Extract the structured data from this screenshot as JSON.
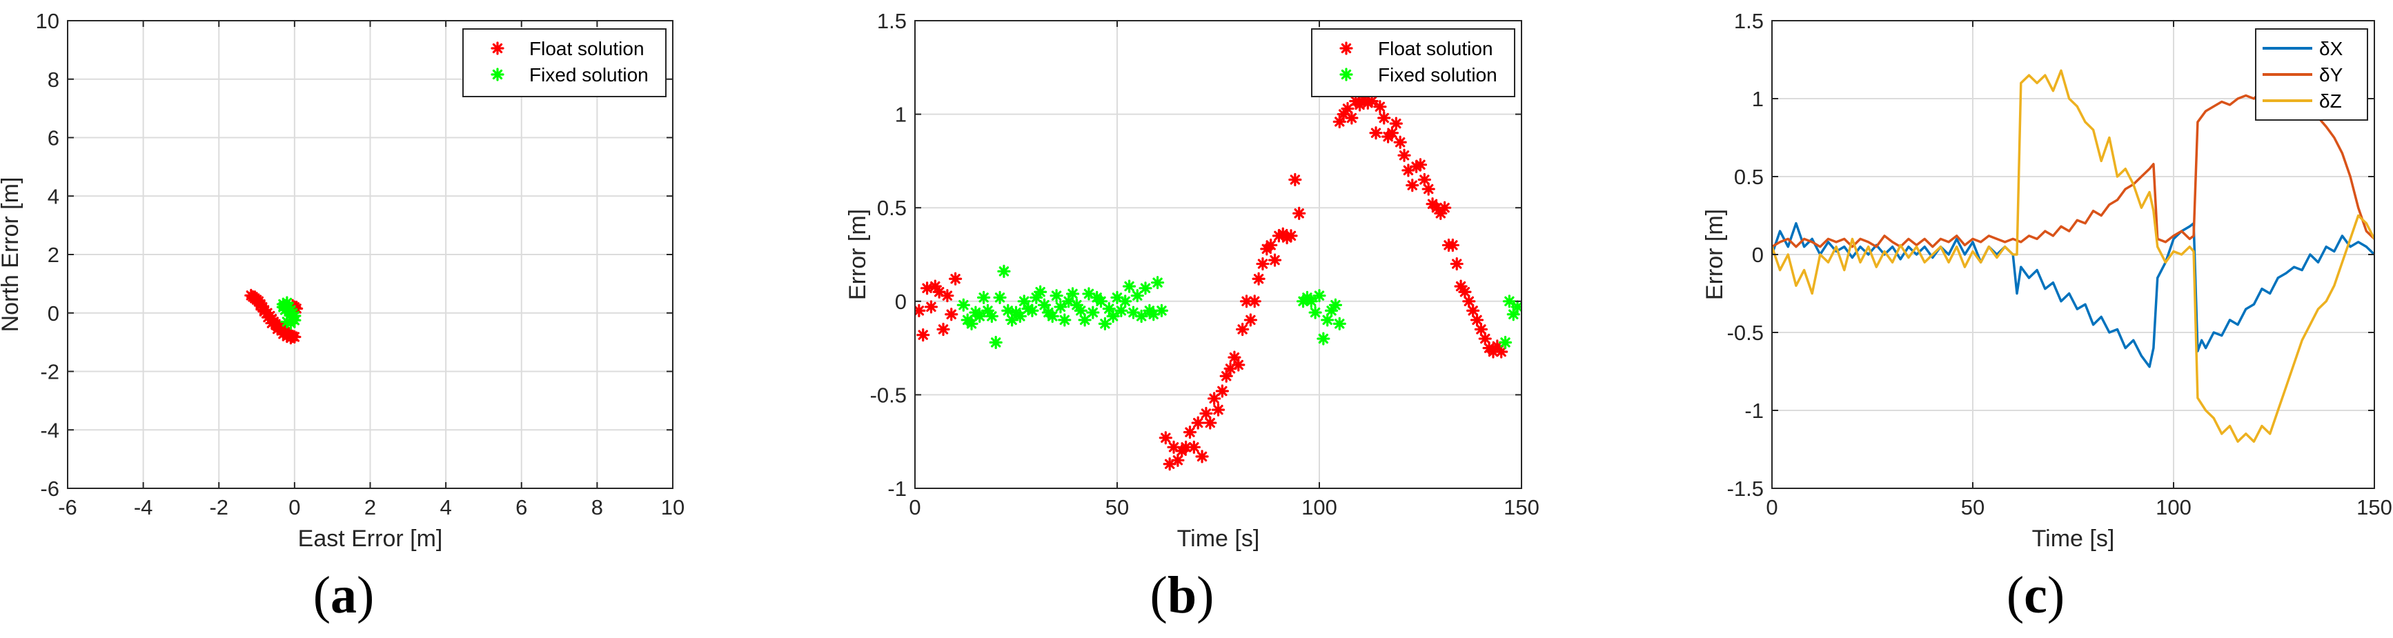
{
  "chart_data": [
    {
      "type": "scatter",
      "panel_label": "a",
      "xlabel": "East Error [m]",
      "ylabel": "North Error [m]",
      "xlim": [
        -6,
        10
      ],
      "ylim": [
        -6,
        10
      ],
      "xticks": [
        -6,
        -4,
        -2,
        0,
        2,
        4,
        6,
        8,
        10
      ],
      "yticks": [
        -6,
        -4,
        -2,
        0,
        2,
        4,
        6,
        8,
        10
      ],
      "grid": true,
      "legend_position": "top-right",
      "series": [
        {
          "name": "Float solution",
          "color": "#ff0000",
          "marker": "asterisk",
          "x": [
            -1.15,
            -1.05,
            -0.95,
            -0.9,
            -0.85,
            -0.8,
            -0.72,
            -0.65,
            -0.6,
            -0.55,
            -0.5,
            -0.45,
            -0.4,
            -0.35,
            -0.3,
            -0.25,
            -0.2,
            -0.15,
            -0.1,
            -0.05,
            0.0,
            -0.1,
            -0.2,
            -0.3,
            -0.45,
            -0.6,
            -0.7,
            -0.8,
            -0.9,
            -1.0,
            -1.1,
            -0.05,
            0.05,
            0.0
          ],
          "y": [
            0.6,
            0.5,
            0.4,
            0.3,
            0.2,
            0.1,
            0.0,
            -0.1,
            -0.2,
            -0.3,
            -0.38,
            -0.45,
            -0.5,
            -0.55,
            -0.6,
            -0.65,
            -0.7,
            -0.75,
            -0.78,
            -0.8,
            -0.82,
            -0.85,
            -0.8,
            -0.72,
            -0.55,
            -0.35,
            -0.15,
            0.05,
            0.25,
            0.45,
            0.55,
            0.25,
            0.15,
            0.2
          ]
        },
        {
          "name": "Fixed solution",
          "color": "#00ff00",
          "marker": "asterisk",
          "x": [
            -0.3,
            -0.25,
            -0.2,
            -0.15,
            -0.1,
            -0.05,
            0.0,
            -0.2,
            -0.15,
            -0.1,
            -0.05,
            0.0,
            -0.25,
            -0.3,
            -0.2,
            -0.1
          ],
          "y": [
            0.3,
            0.25,
            0.15,
            0.05,
            -0.05,
            -0.15,
            -0.25,
            0.35,
            0.2,
            0.1,
            0.0,
            -0.1,
            0.1,
            0.2,
            -0.3,
            -0.35
          ]
        }
      ]
    },
    {
      "type": "scatter",
      "panel_label": "b",
      "xlabel": "Time [s]",
      "ylabel": "Error [m]",
      "xlim": [
        0,
        150
      ],
      "ylim": [
        -1,
        1.5
      ],
      "xticks": [
        0,
        50,
        100,
        150
      ],
      "yticks": [
        -1,
        -0.5,
        0,
        0.5,
        1,
        1.5
      ],
      "grid": true,
      "legend_position": "top-right",
      "series": [
        {
          "name": "Float solution",
          "color": "#ff0000",
          "marker": "asterisk",
          "x": [
            1,
            2,
            3,
            4,
            5,
            6,
            7,
            8,
            9,
            10,
            62,
            63,
            64,
            65,
            66,
            67,
            68,
            69,
            70,
            71,
            72,
            73,
            74,
            75,
            76,
            77,
            78,
            79,
            80,
            81,
            82,
            83,
            84,
            85,
            86,
            87,
            88,
            89,
            90,
            91,
            92,
            93,
            94,
            95,
            105,
            106,
            107,
            108,
            109,
            110,
            111,
            112,
            113,
            114,
            115,
            116,
            117,
            118,
            119,
            120,
            121,
            122,
            123,
            124,
            125,
            126,
            127,
            128,
            129,
            130,
            131,
            132,
            133,
            134,
            135,
            136,
            137,
            138,
            139,
            140,
            141,
            142,
            143,
            144,
            145
          ],
          "y": [
            -0.05,
            -0.18,
            0.07,
            -0.03,
            0.08,
            0.05,
            -0.15,
            0.03,
            -0.07,
            0.12,
            -0.73,
            -0.87,
            -0.78,
            -0.85,
            -0.8,
            -0.78,
            -0.7,
            -0.78,
            -0.65,
            -0.83,
            -0.6,
            -0.65,
            -0.52,
            -0.58,
            -0.48,
            -0.4,
            -0.36,
            -0.3,
            -0.34,
            -0.15,
            0.0,
            -0.1,
            0.0,
            0.12,
            0.2,
            0.28,
            0.3,
            0.22,
            0.35,
            0.36,
            0.34,
            0.35,
            0.65,
            0.47,
            0.96,
            1.0,
            1.03,
            0.98,
            1.07,
            1.05,
            1.08,
            1.06,
            1.07,
            0.9,
            1.04,
            0.98,
            0.88,
            0.9,
            0.95,
            0.85,
            0.78,
            0.7,
            0.62,
            0.72,
            0.73,
            0.65,
            0.6,
            0.52,
            0.5,
            0.47,
            0.5,
            0.3,
            0.3,
            0.2,
            0.08,
            0.05,
            0.0,
            -0.05,
            -0.1,
            -0.15,
            -0.2,
            -0.25,
            -0.27,
            -0.24,
            -0.27
          ]
        },
        {
          "name": "Fixed solution",
          "color": "#00ff00",
          "marker": "asterisk",
          "x": [
            12,
            13,
            14,
            15,
            16,
            17,
            18,
            19,
            20,
            21,
            22,
            23,
            24,
            25,
            26,
            27,
            28,
            29,
            30,
            31,
            32,
            33,
            34,
            35,
            36,
            37,
            38,
            39,
            40,
            41,
            42,
            43,
            44,
            45,
            46,
            47,
            48,
            49,
            50,
            51,
            52,
            53,
            54,
            55,
            56,
            57,
            58,
            59,
            60,
            61,
            96,
            97,
            98,
            99,
            100,
            101,
            102,
            103,
            104,
            105,
            146,
            147,
            148,
            149
          ],
          "y": [
            -0.02,
            -0.1,
            -0.12,
            -0.06,
            -0.08,
            0.02,
            -0.05,
            -0.08,
            -0.22,
            0.02,
            0.16,
            -0.05,
            -0.1,
            -0.06,
            -0.08,
            0.0,
            -0.04,
            -0.05,
            0.02,
            0.05,
            -0.02,
            -0.06,
            -0.08,
            0.03,
            -0.03,
            -0.1,
            0.0,
            0.04,
            -0.02,
            -0.05,
            -0.1,
            0.04,
            -0.06,
            0.02,
            0.0,
            -0.12,
            -0.04,
            -0.08,
            0.02,
            -0.05,
            0.0,
            0.08,
            -0.06,
            0.03,
            -0.08,
            0.07,
            -0.05,
            -0.07,
            0.1,
            -0.05,
            0.0,
            0.02,
            0.0,
            -0.06,
            0.03,
            -0.2,
            -0.1,
            -0.05,
            -0.02,
            -0.12,
            -0.22,
            0.0,
            -0.07,
            -0.03
          ]
        }
      ]
    },
    {
      "type": "line",
      "panel_label": "c",
      "xlabel": "Time [s]",
      "ylabel": "Error [m]",
      "xlim": [
        0,
        150
      ],
      "ylim": [
        -1.5,
        1.5
      ],
      "xticks": [
        0,
        50,
        100,
        150
      ],
      "yticks": [
        -1.5,
        -1,
        -0.5,
        0,
        0.5,
        1,
        1.5
      ],
      "grid": true,
      "legend_position": "top-right",
      "series": [
        {
          "name": "δX",
          "color": "#0072bd",
          "x": [
            0,
            2,
            4,
            6,
            8,
            10,
            12,
            14,
            16,
            18,
            20,
            22,
            24,
            26,
            28,
            30,
            32,
            34,
            36,
            38,
            40,
            42,
            44,
            46,
            48,
            50,
            52,
            54,
            56,
            58,
            60,
            61,
            62,
            64,
            66,
            68,
            70,
            72,
            74,
            76,
            78,
            80,
            82,
            84,
            86,
            88,
            90,
            92,
            94,
            95,
            96,
            98,
            100,
            102,
            104,
            105,
            106,
            107,
            108,
            110,
            112,
            114,
            116,
            118,
            120,
            122,
            124,
            126,
            128,
            130,
            132,
            134,
            136,
            138,
            140,
            142,
            144,
            146,
            148,
            150
          ],
          "y": [
            0.0,
            0.15,
            0.05,
            0.2,
            0.05,
            0.1,
            0.0,
            0.08,
            0.02,
            0.05,
            -0.02,
            0.05,
            0.0,
            0.06,
            0.0,
            0.05,
            -0.03,
            0.05,
            0.0,
            0.05,
            -0.02,
            0.05,
            0.0,
            0.1,
            0.0,
            0.08,
            -0.05,
            0.05,
            0.0,
            0.05,
            0.0,
            -0.25,
            -0.08,
            -0.15,
            -0.1,
            -0.22,
            -0.18,
            -0.3,
            -0.25,
            -0.35,
            -0.32,
            -0.45,
            -0.4,
            -0.5,
            -0.48,
            -0.6,
            -0.55,
            -0.65,
            -0.72,
            -0.6,
            -0.15,
            -0.05,
            0.1,
            0.15,
            0.18,
            0.2,
            -0.62,
            -0.55,
            -0.6,
            -0.5,
            -0.52,
            -0.42,
            -0.45,
            -0.35,
            -0.32,
            -0.22,
            -0.25,
            -0.15,
            -0.12,
            -0.08,
            -0.1,
            0.0,
            -0.05,
            0.05,
            0.02,
            0.12,
            0.05,
            0.08,
            0.05,
            0.0
          ]
        },
        {
          "name": "δY",
          "color": "#d95319",
          "x": [
            0,
            2,
            4,
            6,
            8,
            10,
            12,
            14,
            16,
            18,
            20,
            22,
            24,
            26,
            28,
            30,
            32,
            34,
            36,
            38,
            40,
            42,
            44,
            46,
            48,
            50,
            52,
            54,
            56,
            58,
            60,
            62,
            64,
            66,
            68,
            70,
            72,
            74,
            76,
            78,
            80,
            82,
            84,
            86,
            88,
            90,
            92,
            94,
            95,
            96,
            98,
            100,
            102,
            104,
            105,
            106,
            108,
            110,
            112,
            114,
            116,
            118,
            120,
            122,
            124,
            126,
            128,
            130,
            132,
            134,
            136,
            138,
            140,
            142,
            144,
            146,
            148,
            150
          ],
          "y": [
            0.05,
            0.08,
            0.1,
            0.05,
            0.1,
            0.08,
            0.05,
            0.1,
            0.08,
            0.1,
            0.05,
            0.1,
            0.08,
            0.05,
            0.12,
            0.08,
            0.05,
            0.1,
            0.06,
            0.1,
            0.05,
            0.1,
            0.08,
            0.12,
            0.06,
            0.1,
            0.08,
            0.12,
            0.1,
            0.08,
            0.1,
            0.08,
            0.12,
            0.1,
            0.15,
            0.12,
            0.18,
            0.15,
            0.22,
            0.2,
            0.28,
            0.25,
            0.32,
            0.35,
            0.42,
            0.45,
            0.5,
            0.55,
            0.58,
            0.1,
            0.08,
            0.12,
            0.15,
            0.1,
            0.12,
            0.85,
            0.92,
            0.95,
            0.98,
            0.96,
            1.0,
            1.02,
            1.0,
            1.05,
            1.0,
            1.02,
            0.98,
            1.0,
            0.95,
            0.92,
            0.88,
            0.82,
            0.75,
            0.65,
            0.5,
            0.3,
            0.15,
            0.1
          ]
        },
        {
          "name": "δZ",
          "color": "#edb120",
          "x": [
            0,
            2,
            4,
            6,
            8,
            10,
            12,
            14,
            16,
            18,
            20,
            22,
            24,
            26,
            28,
            30,
            32,
            34,
            36,
            38,
            40,
            42,
            44,
            46,
            48,
            50,
            52,
            54,
            56,
            58,
            60,
            61,
            62,
            64,
            66,
            68,
            70,
            72,
            74,
            76,
            78,
            80,
            82,
            84,
            86,
            88,
            90,
            92,
            94,
            95,
            96,
            98,
            100,
            102,
            104,
            105,
            106,
            108,
            110,
            112,
            114,
            116,
            118,
            120,
            122,
            124,
            126,
            128,
            130,
            132,
            134,
            136,
            138,
            140,
            142,
            144,
            146,
            148,
            150
          ],
          "y": [
            0.05,
            -0.1,
            0.0,
            -0.2,
            -0.1,
            -0.25,
            0.0,
            -0.05,
            0.05,
            -0.1,
            0.1,
            -0.05,
            0.05,
            -0.08,
            0.02,
            -0.05,
            0.06,
            -0.02,
            0.05,
            -0.05,
            0.0,
            0.05,
            -0.05,
            0.05,
            -0.08,
            0.02,
            -0.05,
            0.05,
            -0.02,
            0.05,
            0.0,
            0.0,
            1.1,
            1.15,
            1.1,
            1.15,
            1.05,
            1.18,
            1.0,
            0.95,
            0.85,
            0.8,
            0.6,
            0.75,
            0.5,
            0.55,
            0.45,
            0.3,
            0.4,
            0.28,
            0.05,
            -0.05,
            0.02,
            0.0,
            0.05,
            0.02,
            -0.92,
            -1.0,
            -1.05,
            -1.15,
            -1.1,
            -1.2,
            -1.15,
            -1.2,
            -1.1,
            -1.15,
            -1.0,
            -0.85,
            -0.7,
            -0.55,
            -0.45,
            -0.35,
            -0.3,
            -0.2,
            -0.05,
            0.1,
            0.25,
            0.2,
            0.1
          ]
        }
      ]
    }
  ]
}
